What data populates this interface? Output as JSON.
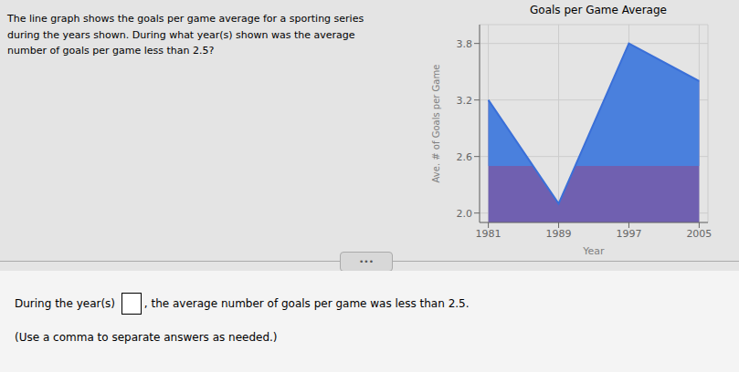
{
  "chart_data": {
    "type": "line",
    "title": "Goals per Game Average",
    "xlabel": "Year",
    "ylabel": "Ave. # of Goals per Game",
    "x": [
      1981,
      1989,
      1997,
      2005
    ],
    "values": [
      3.2,
      2.1,
      3.8,
      3.4
    ],
    "color": "#3a6fd8",
    "colors": [
      "#7060b0",
      "#4a80dd"
    ],
    "threshold": 2.5,
    "xlim": [
      1980,
      2006
    ],
    "xticks": [
      1981,
      1989,
      1997,
      2005
    ],
    "ylim": [
      1.9,
      4.0
    ],
    "yticks": [
      {
        "value": 2,
        "label": "2.0"
      },
      2.6,
      3.2,
      3.8
    ],
    "grid": true,
    "annotations": [
      "The line graph shows the goals per game average for a sporting series\nduring the years shown. During what year(s) shown was the average\nnumber of goals per game less than 2.5?",
      "•••",
      "During the year(s) ",
      ", the average number of goals per game was less than 2.5.",
      "(Use a comma to separate answers as needed.)"
    ]
  }
}
